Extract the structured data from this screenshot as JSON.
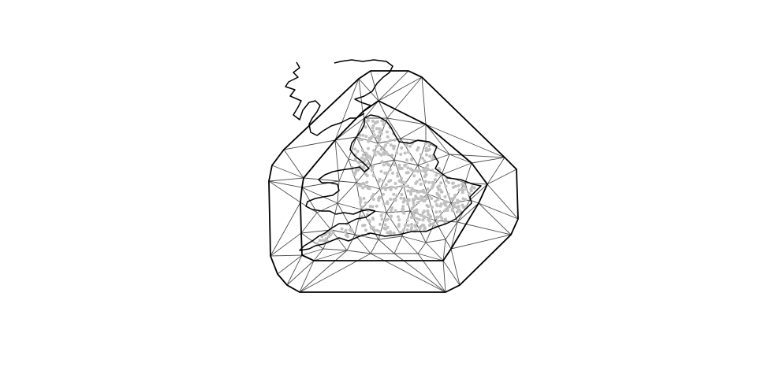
{
  "figure": {
    "kind": "finite-element triangulation mesh over a coastline map",
    "colors": {
      "background": "#ffffff",
      "boundary": "#000000",
      "mesh_edge": "#4d4d4d",
      "coastline": "#000000",
      "observation_point": "#c0c0c0"
    },
    "layers": [
      "outer-boundary",
      "inner-boundary",
      "mesh-triangles",
      "coastline",
      "observation-points"
    ]
  }
}
